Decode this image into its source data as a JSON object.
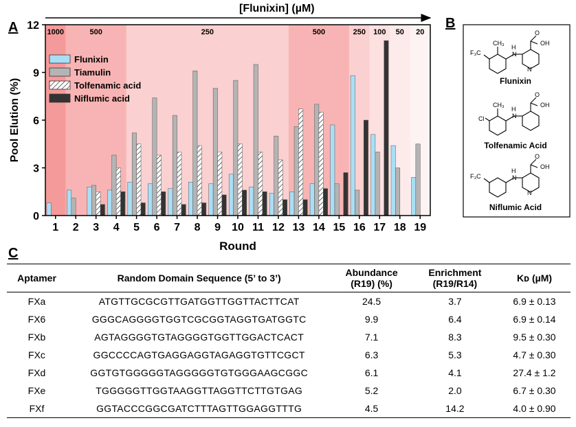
{
  "panels": {
    "a": "A",
    "b": "B",
    "c": "C"
  },
  "chart_data": {
    "type": "bar",
    "title": "[Flunixin] (µM)",
    "xlabel": "Round",
    "ylabel": "Pool Elution (%)",
    "ylim": [
      0,
      12
    ],
    "yticks": [
      "0",
      "3",
      "6",
      "9",
      "12"
    ],
    "categories": [
      "1",
      "2",
      "3",
      "4",
      "5",
      "6",
      "7",
      "8",
      "9",
      "10",
      "11",
      "12",
      "13",
      "14",
      "15",
      "16",
      "17",
      "18",
      "19"
    ],
    "series": [
      {
        "name": "Flunixin",
        "color": "#a9dff6",
        "pattern": "solid",
        "values": [
          0.8,
          1.6,
          1.8,
          1.6,
          2.1,
          2.0,
          1.7,
          2.1,
          2.0,
          2.6,
          1.8,
          1.4,
          1.5,
          2.0,
          5.7,
          8.8,
          5.1,
          4.4,
          2.4
        ]
      },
      {
        "name": "Tiamulin",
        "color": "#b4b4b4",
        "pattern": "solid",
        "values": [
          null,
          1.1,
          1.9,
          3.8,
          5.2,
          7.4,
          6.3,
          9.1,
          8.0,
          8.5,
          9.5,
          5.0,
          5.6,
          7.0,
          2.0,
          1.6,
          4.0,
          3.0,
          4.5
        ]
      },
      {
        "name": "Tolfenamic acid",
        "color": "#ffffff",
        "pattern": "hatch",
        "values": [
          null,
          null,
          1.5,
          3.0,
          4.5,
          3.8,
          4.0,
          4.4,
          4.0,
          4.5,
          4.0,
          3.5,
          6.7,
          6.5,
          null,
          null,
          null,
          null,
          null
        ]
      },
      {
        "name": "Niflumic acid",
        "color": "#333333",
        "pattern": "solid",
        "values": [
          null,
          null,
          0.7,
          1.5,
          0.8,
          1.5,
          0.7,
          0.8,
          1.3,
          1.6,
          1.5,
          1.0,
          1.0,
          1.7,
          2.7,
          6.0,
          11.0,
          null,
          null
        ]
      }
    ],
    "concentration_regions": [
      {
        "label": "1000",
        "from_round": 1,
        "to_round": 1,
        "color": "#f59a9a"
      },
      {
        "label": "500",
        "from_round": 2,
        "to_round": 4,
        "color": "#f8b4b4"
      },
      {
        "label": "250",
        "from_round": 5,
        "to_round": 12,
        "color": "#fbd0d0"
      },
      {
        "label": "500",
        "from_round": 13,
        "to_round": 15,
        "color": "#f8b4b4"
      },
      {
        "label": "250",
        "from_round": 16,
        "to_round": 16,
        "color": "#fbd0d0"
      },
      {
        "label": "100",
        "from_round": 17,
        "to_round": 17,
        "color": "#fde0e0"
      },
      {
        "label": "50",
        "from_round": 18,
        "to_round": 18,
        "color": "#fdeaea"
      },
      {
        "label": "20",
        "from_round": 19,
        "to_round": 19,
        "color": "#fef3f3"
      }
    ],
    "legend_position": "top-left"
  },
  "molecules": [
    {
      "name": "Flunixin",
      "substituents": [
        "F₃C",
        "CH₃",
        "H",
        "N",
        "O",
        "OH",
        "N"
      ]
    },
    {
      "name": "Tolfenamic Acid",
      "substituents": [
        "Cl",
        "CH₃",
        "H",
        "N",
        "O",
        "OH"
      ]
    },
    {
      "name": "Niflumic Acid",
      "substituents": [
        "F₃C",
        "H",
        "N",
        "O",
        "OH",
        "N"
      ]
    }
  ],
  "table": {
    "headers": [
      "Aptamer",
      "Random Domain Sequence (5’ to 3’)",
      "Abundance (R19) (%)",
      "Enrichment (R19/R14)",
      "Kᴅ (µM)"
    ],
    "header_lines": {
      "abundance": [
        "Abundance",
        "(R19) (%)"
      ],
      "enrichment": [
        "Enrichment",
        "(R19/R14)"
      ],
      "kd": "Kᴅ (µM)"
    },
    "rows": [
      {
        "aptamer": "FXa",
        "sequence": "ATGTTGCGCGTTGATGGTTGGTTACTTCAT",
        "abundance": "24.5",
        "enrichment": "3.7",
        "kd": "6.9 ± 0.13"
      },
      {
        "aptamer": "FX6",
        "sequence": "GGGCAGGGGTGGTCGCGGTAGGTGATGGTC",
        "abundance": "9.9",
        "enrichment": "6.4",
        "kd": "6.9 ± 0.14"
      },
      {
        "aptamer": "FXb",
        "sequence": "AGTAGGGGTGTAGGGGTGGTTGGACTCACT",
        "abundance": "7.1",
        "enrichment": "8.3",
        "kd": "9.5 ± 0.30"
      },
      {
        "aptamer": "FXc",
        "sequence": "GGCCCCAGTGAGGAGGTAGAGGTGTTCGCT",
        "abundance": "6.3",
        "enrichment": "5.3",
        "kd": "4.7 ± 0.30"
      },
      {
        "aptamer": "FXd",
        "sequence": "GGTGTGGGGGTAGGGGGTGTGGGAAGCGGC",
        "abundance": "6.1",
        "enrichment": "4.1",
        "kd": "27.4 ± 1.2"
      },
      {
        "aptamer": "FXe",
        "sequence": "TGGGGGTTGGTAAGGTTAGGTTCTTGTGAG",
        "abundance": "5.2",
        "enrichment": "2.0",
        "kd": "6.7 ± 0.30"
      },
      {
        "aptamer": "FXf",
        "sequence": "GGTACCCGGCGATCTTTAGTTGGAGGTTTG",
        "abundance": "4.5",
        "enrichment": "14.2",
        "kd": "4.0 ± 0.90"
      }
    ]
  }
}
